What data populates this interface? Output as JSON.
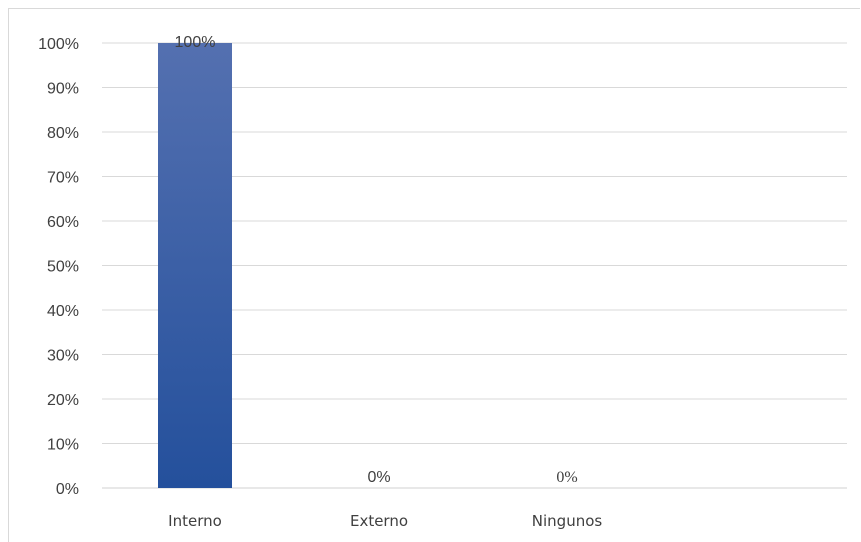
{
  "chart_data": {
    "type": "bar",
    "categories": [
      "Interno",
      "Externo",
      "Ningunos"
    ],
    "values": [
      100,
      0,
      0
    ],
    "data_labels": [
      "100%",
      "0%",
      "0%"
    ],
    "y_tick_labels": [
      "0%",
      "10%",
      "20%",
      "30%",
      "40%",
      "50%",
      "60%",
      "70%",
      "80%",
      "90%",
      "100%"
    ],
    "ylim": [
      0,
      100
    ],
    "grid": true,
    "bar_color_top": "#5470b0",
    "bar_color_bottom": "#24509c",
    "title": "",
    "xlabel": "",
    "ylabel": ""
  }
}
